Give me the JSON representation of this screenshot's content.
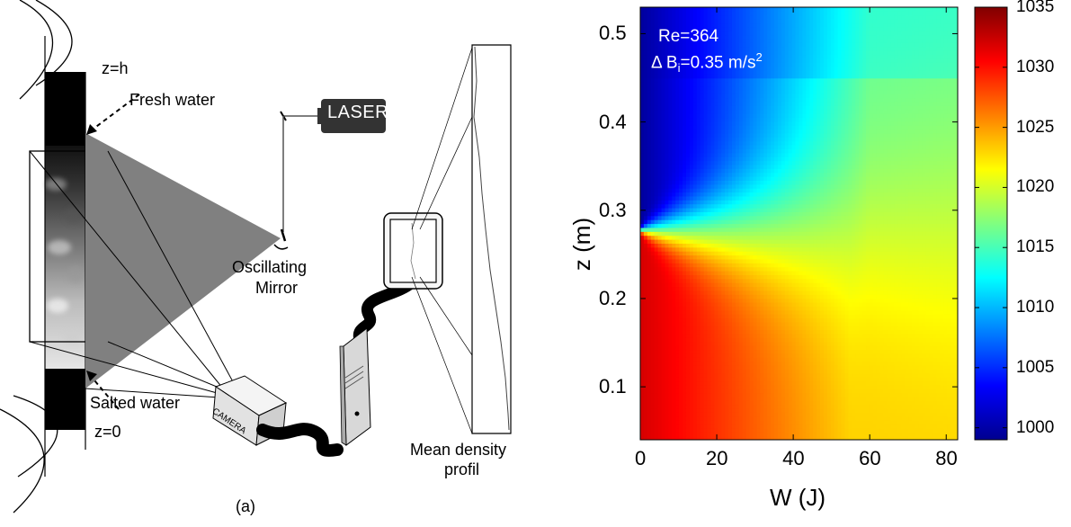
{
  "panel_a": {
    "caption": "(a)",
    "label_z_top": "z=h",
    "label_z_bottom": "z=0",
    "label_fresh": "Fresh water",
    "label_salted": "Salted water",
    "label_laser": "LASER",
    "label_mirror_1": "Oscillating",
    "label_mirror_2": "Mirror",
    "label_camera": "CAMERA",
    "label_profile_1": "Mean density",
    "label_profile_2": "profil"
  },
  "chart_data": {
    "type": "heatmap",
    "xlabel": "W (J)",
    "ylabel": "z (m)",
    "xlim": [
      0,
      83
    ],
    "ylim": [
      0.04,
      0.53
    ],
    "x_ticks": [
      "0",
      "20",
      "40",
      "60",
      "80"
    ],
    "y_ticks": [
      "0.1",
      "0.2",
      "0.3",
      "0.4",
      "0.5"
    ],
    "colorbar": {
      "range": [
        999,
        1035
      ],
      "ticks": [
        "1000",
        "1005",
        "1010",
        "1015",
        "1020",
        "1025",
        "1030",
        "1035"
      ],
      "colormap": "jet"
    },
    "annotation_re": "Re=364",
    "annotation_db_prefix": "Δ B",
    "annotation_db_sub": "i",
    "annotation_db_value": "=0.35 m/s",
    "annotation_db_sup": "2",
    "interface_z": 0.278,
    "density_lower": 1032,
    "density_upper": 1000
  }
}
